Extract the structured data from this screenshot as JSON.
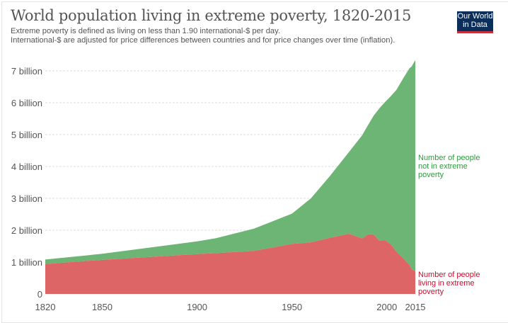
{
  "header": {
    "title": "World population living in extreme poverty, 1820-2015",
    "subtitle_1": "Extreme poverty is defined as living on less than 1.90 international-$ per day.",
    "subtitle_2": "International-$ are adjusted for price differences between countries and for price changes over time (inflation).",
    "logo_line1": "Our World",
    "logo_line2": "in Data"
  },
  "colors": {
    "not_poor": "#6db574",
    "poor": "#dd6565",
    "not_poor_label": "#2e9a3e",
    "poor_label": "#c8102e",
    "logo_bg": "#0c2e5a",
    "logo_bar": "#c6303a"
  },
  "chart_data": {
    "type": "area",
    "stacked": true,
    "title": "World population living in extreme poverty, 1820-2015",
    "xlabel": "",
    "ylabel": "",
    "xlim": [
      1820,
      2015
    ],
    "ylim": [
      0,
      7.35
    ],
    "y_unit": "billion",
    "x_ticks": [
      "1820",
      "1850",
      "1900",
      "1950",
      "2000",
      "2015"
    ],
    "y_ticks": [
      "0",
      "1 billion",
      "2 billion",
      "3 billion",
      "4 billion",
      "5 billion",
      "6 billion",
      "7 billion"
    ],
    "grid": true,
    "x": [
      1820,
      1850,
      1900,
      1910,
      1930,
      1950,
      1960,
      1970,
      1980,
      1987,
      1990,
      1993,
      1996,
      1999,
      2002,
      2005,
      2009,
      2012,
      2013,
      2015
    ],
    "series": [
      {
        "name": "Number of people living in extreme poverty",
        "values": [
          0.94,
          1.07,
          1.25,
          1.28,
          1.35,
          1.57,
          1.62,
          1.76,
          1.89,
          1.74,
          1.87,
          1.87,
          1.67,
          1.69,
          1.56,
          1.33,
          1.1,
          0.9,
          0.78,
          0.71
        ]
      },
      {
        "name": "Number of people not in extreme poverty",
        "values": [
          0.14,
          0.19,
          0.4,
          0.47,
          0.7,
          0.95,
          1.38,
          1.94,
          2.56,
          3.24,
          3.42,
          3.72,
          4.15,
          4.33,
          4.64,
          5.07,
          5.7,
          6.19,
          6.35,
          6.63
        ]
      }
    ],
    "legend": [
      {
        "lines": [
          "Number of people",
          "not in extreme",
          "poverty"
        ]
      },
      {
        "lines": [
          "Number of people",
          "living in extreme",
          "poverty"
        ]
      }
    ],
    "legend_placement": "right"
  }
}
